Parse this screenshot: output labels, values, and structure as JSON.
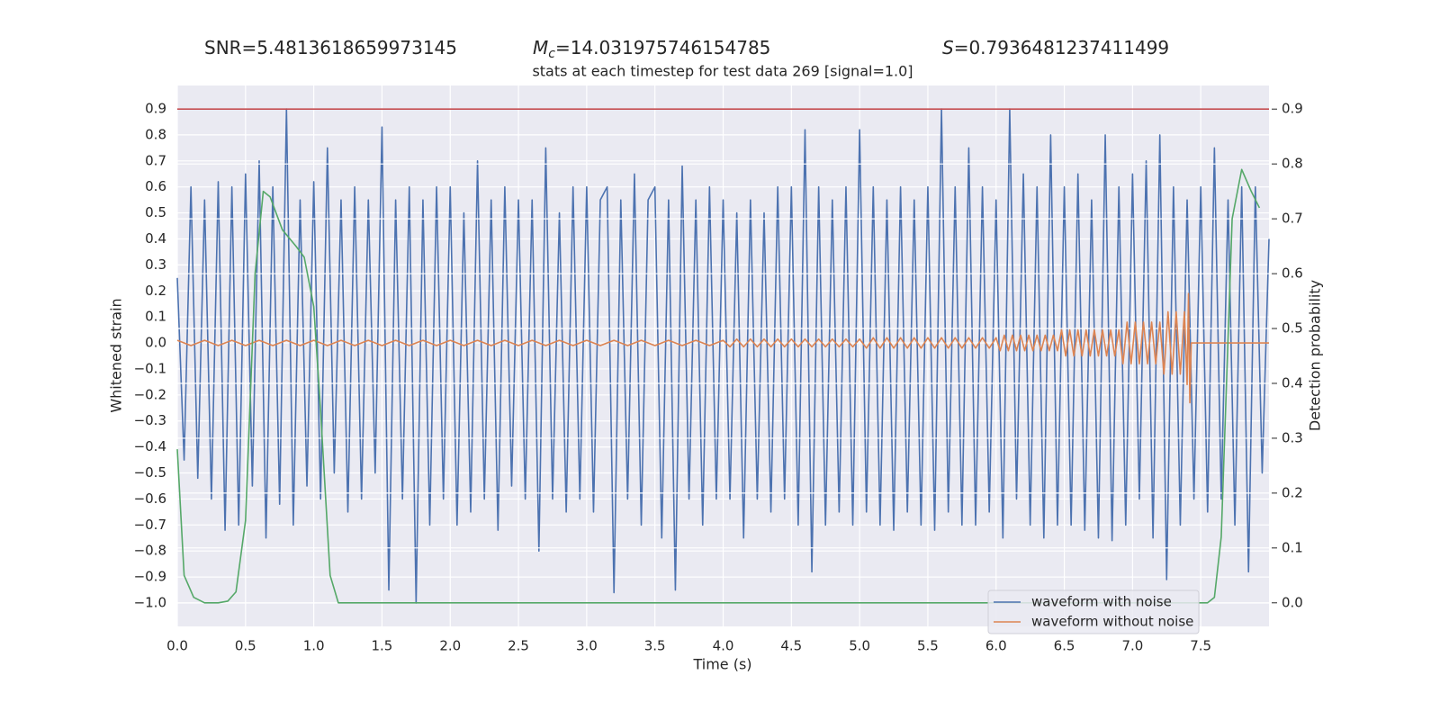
{
  "chart_data": {
    "type": "line",
    "annotations": [
      {
        "text": "SNR=5.4813618659973145"
      },
      {
        "symbol": "M",
        "subscript": "c",
        "text": "=14.031975746154785"
      },
      {
        "symbol": "S",
        "text": "=0.7936481237411499"
      }
    ],
    "title": "stats at each timestep for test data 269 [signal=1.0]",
    "xlabel": "Time (s)",
    "ylabel": "Whitened strain",
    "y2label": "Detection probability",
    "xlim": [
      0,
      8.0
    ],
    "ylim": [
      -1.09,
      0.99
    ],
    "y2lim": [
      -0.043,
      0.943
    ],
    "xticks": [
      {
        "value": 0,
        "label": "0.0"
      },
      0.5,
      {
        "value": 1,
        "label": "1.0"
      },
      1.5,
      {
        "value": 2,
        "label": "2.0"
      },
      2.5,
      {
        "value": 3,
        "label": "3.0"
      },
      3.5,
      {
        "value": 4,
        "label": "4.0"
      },
      4.5,
      {
        "value": 5,
        "label": "5.0"
      },
      5.5,
      {
        "value": 6,
        "label": "6.0"
      },
      6.5,
      {
        "value": 7,
        "label": "7.0"
      },
      7.5
    ],
    "yticks": [
      {
        "value": -1,
        "label": "−1.0"
      },
      {
        "value": -0.9,
        "label": "−0.9"
      },
      {
        "value": -0.8,
        "label": "−0.8"
      },
      {
        "value": -0.7,
        "label": "−0.7"
      },
      {
        "value": -0.6,
        "label": "−0.6"
      },
      {
        "value": -0.5,
        "label": "−0.5"
      },
      {
        "value": -0.4,
        "label": "−0.4"
      },
      {
        "value": -0.3,
        "label": "−0.3"
      },
      {
        "value": -0.2,
        "label": "−0.2"
      },
      {
        "value": -0.1,
        "label": "−0.1"
      },
      {
        "value": 0,
        "label": "0.0"
      },
      0.1,
      0.2,
      0.3,
      0.4,
      0.5,
      0.6,
      0.7,
      0.8,
      0.9
    ],
    "y2ticks": [
      {
        "value": 0,
        "label": "0.0"
      },
      0.1,
      0.2,
      0.3,
      0.4,
      0.5,
      0.6,
      0.7,
      0.8,
      0.9
    ],
    "grid": true,
    "legend": "lower right",
    "hlines": [
      {
        "value": 0.9,
        "color": "#c44e52",
        "axis": "y2"
      }
    ],
    "series": [
      {
        "name": "waveform with noise",
        "color": "#4c72b0",
        "x": [
          0,
          0.05,
          0.1,
          0.15,
          0.2,
          0.25,
          0.3,
          0.35,
          0.4,
          0.45,
          0.5,
          0.55,
          0.6,
          0.65,
          0.7,
          0.75,
          0.8,
          0.85,
          0.9,
          0.95,
          1.0,
          1.05,
          1.1,
          1.15,
          1.2,
          1.25,
          1.3,
          1.35,
          1.4,
          1.45,
          1.5,
          1.55,
          1.6,
          1.65,
          1.7,
          1.75,
          1.8,
          1.85,
          1.9,
          1.95,
          2.0,
          2.05,
          2.1,
          2.15,
          2.2,
          2.25,
          2.3,
          2.35,
          2.4,
          2.45,
          2.5,
          2.55,
          2.6,
          2.65,
          2.7,
          2.75,
          2.8,
          2.85,
          2.9,
          2.95,
          3.0,
          3.05,
          3.1,
          3.15,
          3.2,
          3.25,
          3.3,
          3.35,
          3.4,
          3.45,
          3.5,
          3.55,
          3.6,
          3.65,
          3.7,
          3.75,
          3.8,
          3.85,
          3.9,
          3.95,
          4.0,
          4.05,
          4.1,
          4.15,
          4.2,
          4.25,
          4.3,
          4.35,
          4.4,
          4.45,
          4.5,
          4.55,
          4.6,
          4.65,
          4.7,
          4.75,
          4.8,
          4.85,
          4.9,
          4.95,
          5.0,
          5.05,
          5.1,
          5.15,
          5.2,
          5.25,
          5.3,
          5.35,
          5.4,
          5.45,
          5.5,
          5.55,
          5.6,
          5.65,
          5.7,
          5.75,
          5.8,
          5.85,
          5.9,
          5.95,
          6.0,
          6.05,
          6.1,
          6.15,
          6.2,
          6.25,
          6.3,
          6.35,
          6.4,
          6.45,
          6.5,
          6.55,
          6.6,
          6.65,
          6.7,
          6.75,
          6.8,
          6.85,
          6.9,
          6.95,
          7.0,
          7.05,
          7.1,
          7.15,
          7.2,
          7.25,
          7.3,
          7.35,
          7.4,
          7.45,
          7.5,
          7.55,
          7.6,
          7.65,
          7.7,
          7.75,
          7.8,
          7.85,
          7.9,
          7.95,
          8.0
        ],
        "values": [
          0.25,
          -0.45,
          0.6,
          -0.52,
          0.55,
          -0.6,
          0.62,
          -0.72,
          0.6,
          -0.7,
          0.65,
          -0.55,
          0.7,
          -0.75,
          0.6,
          -0.62,
          0.9,
          -0.7,
          0.55,
          -0.55,
          0.62,
          -0.6,
          0.75,
          -0.5,
          0.55,
          -0.65,
          0.6,
          -0.6,
          0.55,
          -0.5,
          0.83,
          -0.95,
          0.55,
          -0.6,
          0.6,
          -1.0,
          0.55,
          -0.7,
          0.6,
          -0.6,
          0.6,
          -0.7,
          0.5,
          -0.65,
          0.7,
          -0.6,
          0.55,
          -0.72,
          0.6,
          -0.55,
          0.55,
          -0.6,
          0.55,
          -0.8,
          0.75,
          -0.6,
          0.5,
          -0.65,
          0.6,
          -0.6,
          0.6,
          -0.65,
          0.55,
          0.6,
          -0.96,
          0.55,
          -0.6,
          0.65,
          -0.7,
          0.55,
          0.6,
          -0.75,
          0.55,
          -0.95,
          0.68,
          -0.6,
          0.55,
          -0.7,
          0.6,
          -0.6,
          0.55,
          -0.6,
          0.5,
          -0.75,
          0.55,
          -0.6,
          0.5,
          -0.65,
          0.6,
          -0.6,
          0.6,
          -0.7,
          0.82,
          -0.88,
          0.6,
          -0.7,
          0.55,
          -0.65,
          0.6,
          -0.7,
          0.82,
          -0.65,
          0.6,
          -0.7,
          0.55,
          -0.72,
          0.6,
          -0.65,
          0.55,
          -0.7,
          0.6,
          -0.72,
          0.9,
          -0.65,
          0.6,
          -0.7,
          0.75,
          -0.7,
          0.6,
          -0.65,
          0.55,
          -0.75,
          0.9,
          -0.6,
          0.65,
          -0.7,
          0.6,
          -0.75,
          0.8,
          -0.7,
          0.6,
          -0.7,
          0.65,
          -0.72,
          0.55,
          -0.75,
          0.8,
          -0.76,
          0.6,
          -0.7,
          0.65,
          -0.6,
          0.7,
          -0.75,
          0.8,
          -0.91,
          0.6,
          -0.7,
          0.55,
          -0.6,
          0.6,
          -0.65,
          0.75,
          -0.6,
          0.55,
          -0.7,
          0.6,
          -0.88,
          0.6,
          -0.5,
          0.4
        ]
      },
      {
        "name": "waveform without noise",
        "color": "#dd8452",
        "x": [
          0,
          0.1,
          0.2,
          0.3,
          0.4,
          0.5,
          0.6,
          0.7,
          0.8,
          0.9,
          1.0,
          1.1,
          1.2,
          1.3,
          1.4,
          1.5,
          1.6,
          1.7,
          1.8,
          1.9,
          2.0,
          2.1,
          2.2,
          2.3,
          2.4,
          2.5,
          2.6,
          2.7,
          2.8,
          2.9,
          3.0,
          3.1,
          3.2,
          3.3,
          3.4,
          3.5,
          3.6,
          3.7,
          3.8,
          3.9,
          4.0,
          4.05,
          4.1,
          4.15,
          4.2,
          4.25,
          4.3,
          4.35,
          4.4,
          4.45,
          4.5,
          4.55,
          4.6,
          4.65,
          4.7,
          4.75,
          4.8,
          4.85,
          4.9,
          4.95,
          5.0,
          5.05,
          5.1,
          5.15,
          5.2,
          5.25,
          5.3,
          5.35,
          5.4,
          5.45,
          5.5,
          5.55,
          5.6,
          5.65,
          5.7,
          5.75,
          5.8,
          5.85,
          5.9,
          5.95,
          6.0,
          6.03,
          6.06,
          6.09,
          6.12,
          6.15,
          6.18,
          6.21,
          6.24,
          6.27,
          6.3,
          6.33,
          6.36,
          6.39,
          6.42,
          6.45,
          6.48,
          6.51,
          6.54,
          6.57,
          6.6,
          6.63,
          6.66,
          6.69,
          6.72,
          6.75,
          6.78,
          6.81,
          6.84,
          6.87,
          6.9,
          6.93,
          6.96,
          6.99,
          7.02,
          7.05,
          7.08,
          7.11,
          7.14,
          7.17,
          7.2,
          7.23,
          7.26,
          7.29,
          7.32,
          7.35,
          7.38,
          7.4,
          7.41,
          7.42,
          7.43,
          8.0
        ],
        "values": [
          0.01,
          -0.01,
          0.01,
          -0.01,
          0.01,
          -0.01,
          0.01,
          -0.01,
          0.01,
          -0.01,
          0.01,
          -0.01,
          0.01,
          -0.01,
          0.01,
          -0.01,
          0.01,
          -0.01,
          0.01,
          -0.01,
          0.01,
          -0.01,
          0.01,
          -0.01,
          0.01,
          -0.01,
          0.01,
          -0.01,
          0.01,
          -0.01,
          0.01,
          -0.01,
          0.01,
          -0.01,
          0.01,
          -0.01,
          0.01,
          -0.01,
          0.01,
          -0.01,
          0.01,
          -0.015,
          0.015,
          -0.015,
          0.015,
          -0.015,
          0.015,
          -0.015,
          0.015,
          -0.015,
          0.015,
          -0.015,
          0.015,
          -0.015,
          0.015,
          -0.015,
          0.015,
          -0.015,
          0.015,
          -0.015,
          0.015,
          -0.02,
          0.02,
          -0.02,
          0.02,
          -0.02,
          0.02,
          -0.02,
          0.02,
          -0.02,
          0.02,
          -0.02,
          0.02,
          -0.02,
          0.02,
          -0.02,
          0.02,
          -0.02,
          0.02,
          -0.02,
          0.02,
          -0.03,
          0.03,
          -0.03,
          0.03,
          -0.03,
          0.03,
          -0.03,
          0.03,
          -0.03,
          0.03,
          -0.03,
          0.03,
          -0.03,
          0.03,
          -0.03,
          0.05,
          -0.05,
          0.05,
          -0.05,
          0.05,
          -0.05,
          0.05,
          -0.05,
          0.05,
          -0.05,
          0.05,
          -0.05,
          0.05,
          -0.05,
          0.05,
          -0.08,
          0.08,
          -0.08,
          0.08,
          -0.08,
          0.08,
          -0.08,
          0.08,
          -0.08,
          0.08,
          -0.12,
          0.12,
          -0.12,
          0.12,
          -0.12,
          0.12,
          -0.16,
          0.19,
          -0.23,
          0,
          0
        ]
      },
      {
        "color": "#55a868",
        "axis": "y2",
        "x": [
          0,
          0.05,
          0.12,
          0.2,
          0.3,
          0.37,
          0.43,
          0.5,
          0.57,
          0.63,
          0.68,
          0.77,
          0.87,
          0.93,
          1.0,
          1.05,
          1.12,
          1.18,
          1.25,
          7.55,
          7.6,
          7.65,
          7.73,
          7.8,
          7.87,
          7.93
        ],
        "values": [
          0.28,
          0.05,
          0.01,
          0,
          0,
          0.003,
          0.02,
          0.15,
          0.6,
          0.75,
          0.74,
          0.68,
          0.65,
          0.63,
          0.54,
          0.35,
          0.05,
          0,
          0,
          0,
          0.01,
          0.12,
          0.7,
          0.79,
          0.75,
          0.72
        ]
      }
    ]
  }
}
